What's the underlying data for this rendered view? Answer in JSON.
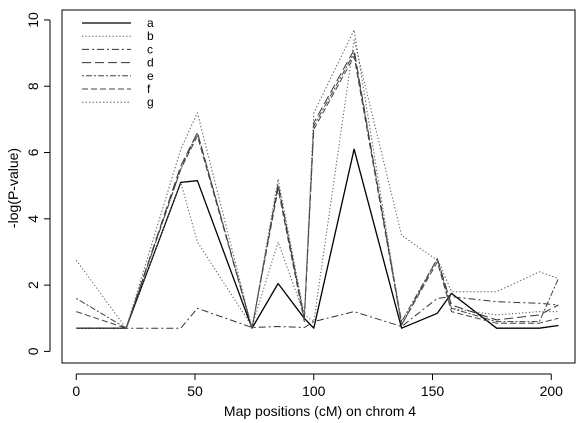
{
  "chart_data": {
    "type": "line",
    "title": "",
    "xlabel": "Map positions (cM) on chrom 4",
    "ylabel": "-log(P-value)",
    "xlim": [
      -6,
      210
    ],
    "ylim": [
      -0.35,
      10.3
    ],
    "xticks": [
      0,
      50,
      100,
      150,
      200
    ],
    "yticks": [
      0,
      2,
      4,
      6,
      8,
      10
    ],
    "grid": false,
    "legend_position": "top-left",
    "x": [
      0,
      21,
      44,
      51,
      74,
      85,
      96,
      100,
      117,
      137,
      152,
      158,
      177,
      195,
      203
    ],
    "series": [
      {
        "name": "a",
        "color": "#000000",
        "dash": "",
        "width": 1.3,
        "values": [
          0.7,
          0.7,
          5.1,
          5.15,
          0.7,
          2.05,
          1.0,
          0.7,
          6.1,
          0.7,
          1.15,
          1.75,
          0.7,
          0.7,
          0.78
        ]
      },
      {
        "name": "b",
        "color": "#555555",
        "dash": "1.2,2.2",
        "width": 1,
        "values": [
          2.75,
          0.7,
          5.1,
          3.3,
          0.75,
          3.3,
          1.1,
          0.9,
          9.4,
          3.5,
          2.75,
          1.3,
          1.1,
          1.2,
          1.2
        ]
      },
      {
        "name": "c",
        "color": "#333333",
        "dash": "7,3,2,3",
        "width": 1,
        "values": [
          0.7,
          0.7,
          0.7,
          1.3,
          0.72,
          0.75,
          0.72,
          0.9,
          1.2,
          0.75,
          1.6,
          1.65,
          1.5,
          1.45,
          1.4
        ]
      },
      {
        "name": "d",
        "color": "#333333",
        "dash": "9,4",
        "width": 1,
        "values": [
          0.7,
          0.7,
          5.6,
          6.6,
          0.7,
          5.05,
          1.0,
          6.9,
          9.1,
          0.8,
          2.8,
          1.4,
          0.95,
          1.1,
          1.4
        ]
      },
      {
        "name": "e",
        "color": "#444444",
        "dash": "2,2,6,2",
        "width": 1,
        "values": [
          1.6,
          0.7,
          5.5,
          6.6,
          0.7,
          5.0,
          1.0,
          6.8,
          9.0,
          0.9,
          2.8,
          1.3,
          0.9,
          0.9,
          2.2
        ]
      },
      {
        "name": "f",
        "color": "#444444",
        "dash": "6,3",
        "width": 1,
        "values": [
          1.2,
          0.7,
          5.5,
          6.5,
          0.7,
          4.9,
          0.9,
          6.7,
          8.9,
          0.8,
          2.7,
          1.2,
          0.85,
          0.85,
          1.0
        ]
      },
      {
        "name": "g",
        "color": "#666666",
        "dash": "1.5,2",
        "width": 1,
        "values": [
          0.7,
          0.7,
          6.1,
          7.2,
          0.7,
          5.2,
          1.1,
          7.2,
          9.7,
          0.8,
          2.8,
          1.8,
          1.8,
          2.4,
          2.2
        ]
      }
    ]
  }
}
